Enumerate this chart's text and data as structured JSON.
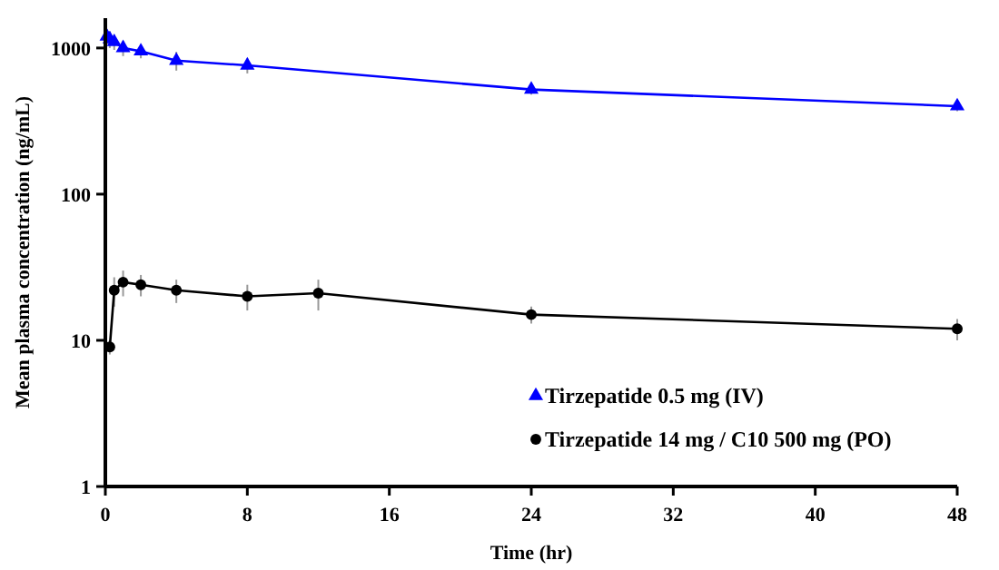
{
  "chart_data": {
    "type": "line",
    "xlabel": "Time (hr)",
    "ylabel": "Mean plasma concentration (ng/mL)",
    "log": "y",
    "xlim": [
      0,
      48
    ],
    "xticks": [
      0,
      8,
      16,
      24,
      32,
      40,
      48
    ],
    "ylim": [
      1,
      1600
    ],
    "yticks": [
      1,
      10,
      100,
      1000
    ],
    "grid": false,
    "legend": "bottom right",
    "series": [
      {
        "name": "Tirzepatide 0.5 mg (IV)",
        "color": "#0000ff",
        "marker": "triangle",
        "x": [
          0.083,
          0.25,
          0.5,
          1,
          2,
          4,
          8,
          24,
          48
        ],
        "values": [
          1200,
          1150,
          1100,
          1000,
          950,
          820,
          760,
          520,
          400
        ],
        "errors": [
          150,
          150,
          130,
          120,
          100,
          120,
          90,
          40,
          30
        ]
      },
      {
        "name": "Tirzepatide 14 mg / C10 500 mg (PO)",
        "color": "#000000",
        "marker": "circle",
        "x": [
          0.25,
          0.5,
          1,
          2,
          4,
          8,
          12,
          24,
          48
        ],
        "values": [
          9,
          22,
          25,
          24,
          22,
          20,
          21,
          15,
          12
        ],
        "errors": [
          1,
          5,
          5,
          4,
          4,
          4,
          5,
          2,
          2
        ]
      }
    ]
  }
}
